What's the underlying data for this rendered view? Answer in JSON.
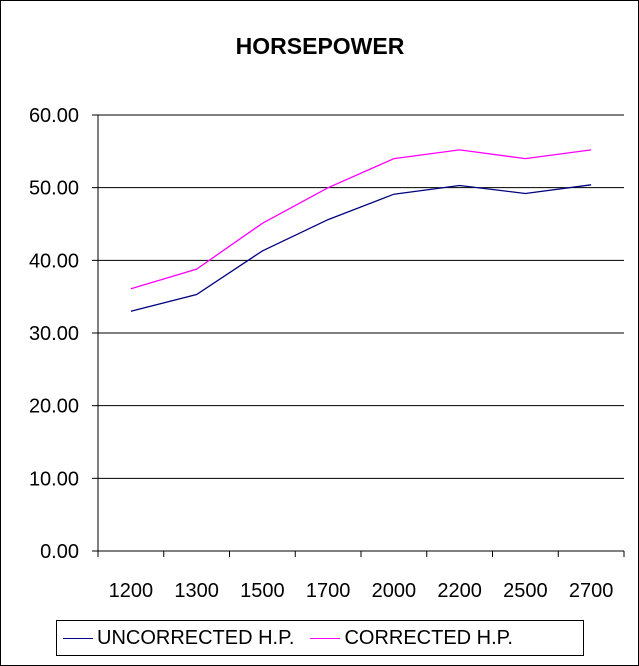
{
  "chart_data": {
    "type": "line",
    "title": "HORSEPOWER",
    "xlabel": "",
    "ylabel": "",
    "categories": [
      "1200",
      "1300",
      "1500",
      "1700",
      "2000",
      "2200",
      "2500",
      "2700"
    ],
    "ylim": [
      0,
      60
    ],
    "yticks": [
      "0.00",
      "10.00",
      "20.00",
      "30.00",
      "40.00",
      "50.00",
      "60.00"
    ],
    "grid": true,
    "legend_position": "bottom",
    "series": [
      {
        "name": "UNCORRECTED H.P.",
        "color": "#000080",
        "values": [
          33.0,
          35.3,
          41.3,
          45.6,
          49.1,
          50.3,
          49.2,
          50.4
        ]
      },
      {
        "name": "CORRECTED H.P.",
        "color": "#ff00ff",
        "values": [
          36.1,
          38.8,
          45.1,
          50.0,
          54.0,
          55.2,
          54.0,
          55.2
        ]
      }
    ]
  }
}
